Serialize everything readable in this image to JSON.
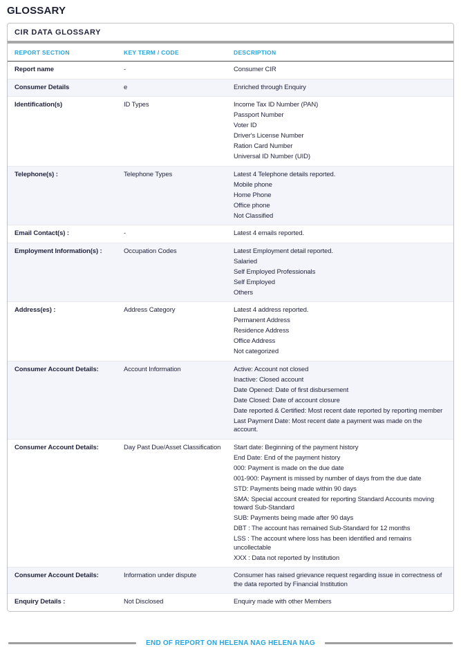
{
  "page_title": "GLOSSARY",
  "card": {
    "title": "CIR DATA GLOSSARY",
    "columns": [
      "REPORT SECTION",
      "KEY TERM / CODE",
      "DESCRIPTION"
    ],
    "rows": [
      {
        "section": "Report name",
        "key": "-",
        "desc": [
          "Consumer CIR"
        ],
        "shade": false
      },
      {
        "section": "Consumer Details",
        "key": "e",
        "desc": [
          "Enriched through Enquiry"
        ],
        "shade": true
      },
      {
        "section": "Identification(s)",
        "key": "ID Types",
        "desc": [
          "Income Tax ID Number (PAN)",
          "Passport Number",
          "Voter ID",
          "Driver's License Number",
          "Ration Card Number",
          "Universal ID Number (UID)"
        ],
        "shade": false
      },
      {
        "section": "Telephone(s) :",
        "key": "Telephone Types",
        "desc": [
          "Latest 4 Telephone details reported.",
          "Mobile phone",
          "Home Phone",
          "Office phone",
          "Not Classified"
        ],
        "shade": true
      },
      {
        "section": "Email Contact(s) :",
        "key": "-",
        "desc": [
          "Latest 4 emails reported."
        ],
        "shade": false
      },
      {
        "section": "Employment Information(s) :",
        "key": "Occupation Codes",
        "desc": [
          "Latest Employment detail reported.",
          "Salaried",
          "Self Employed Professionals",
          "Self Employed",
          "Others"
        ],
        "shade": true
      },
      {
        "section": "Address(es) :",
        "key": "Address Category",
        "desc": [
          "Latest 4 address reported.",
          "Permanent Address",
          "Residence Address",
          "Office Address",
          "Not categorized"
        ],
        "shade": false
      },
      {
        "section": "Consumer Account Details:",
        "key": "Account Information",
        "desc": [
          "Active: Account not closed",
          "Inactive: Closed account",
          "Date Opened: Date of first disbursement",
          "Date Closed: Date of account closure",
          "Date reported & Certified: Most recent date reported by reporting member",
          "Last Payment Date: Most recent date a payment was made on the account."
        ],
        "shade": true
      },
      {
        "section": "Consumer Account Details:",
        "key": "Day Past Due/Asset Classification",
        "desc": [
          "Start date: Beginning of the payment history",
          "End Date: End of the payment history",
          "000: Payment is made on the due date",
          "001-900: Payment is missed by number of days from the due date",
          "STD: Payments being made within 90 days",
          "SMA: Special account created for reporting Standard Accounts moving toward Sub-Standard",
          "SUB: Payments being made after 90 days",
          "DBT : The account has remained Sub-Standard for 12 months",
          "LSS : The account where loss has been identified and remains uncollectable",
          "XXX : Data not reported by Institution"
        ],
        "shade": false
      },
      {
        "section": "Consumer Account Details:",
        "key": "Information under dispute",
        "desc": [
          "Consumer has raised grievance request regarding issue in correctness of the data reported by Financial Institution"
        ],
        "shade": true
      },
      {
        "section": "Enquiry Details :",
        "key": "Not Disclosed",
        "desc": [
          "Enquiry made with other Members"
        ],
        "shade": false
      }
    ]
  },
  "footer": {
    "end_text": "END OF REPORT ON HELENA NAG HELENA NAG"
  },
  "colors": {
    "accent_cyan": "#27a4db",
    "navy": "#23253f",
    "row_shade": "#f3f5fb",
    "rule_gray": "#9e9e9e"
  }
}
